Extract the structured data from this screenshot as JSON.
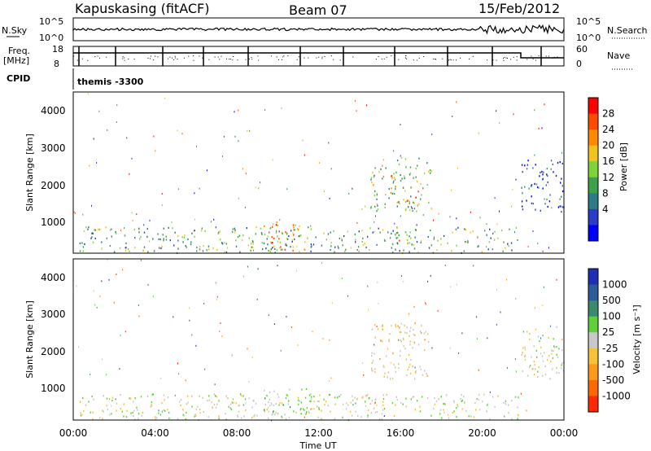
{
  "header": {
    "station": "Kapuskasing (fitACF)",
    "beam": "Beam 07",
    "date": "15/Feb/2012"
  },
  "strips": {
    "nsky_label": "N.Sky",
    "nsky_ticks": [
      "10^5",
      "10^0"
    ],
    "nsearch_label": "N.Search",
    "nsearch_ticks": [
      "10^5",
      "10^0"
    ],
    "freq_label": "Freq.",
    "freq_unit": "[MHz]",
    "freq_ticks": [
      "18",
      "8"
    ],
    "nave_label": "Nave",
    "nave_ticks": [
      "60",
      "0"
    ],
    "cpid_label": "CPID",
    "cpid_value": "themis -3300"
  },
  "power_panel": {
    "ylabel": "Slant Range [km]",
    "yticks": [
      "4000",
      "3000",
      "2000",
      "1000"
    ],
    "colorbar_label": "Power [dB]",
    "colorbar_ticks": [
      "28",
      "24",
      "20",
      "16",
      "12",
      "8",
      "4"
    ],
    "colors": [
      "#0000ff",
      "#2a3cc8",
      "#2e7a86",
      "#3fa04a",
      "#7fd23a",
      "#f0c31e",
      "#ff8a00",
      "#ff4a00",
      "#ff0000"
    ]
  },
  "velocity_panel": {
    "ylabel": "Slant Range [km]",
    "yticks": [
      "4000",
      "3000",
      "2000",
      "1000"
    ],
    "colorbar_label": "Velocity [m s⁻¹]",
    "colorbar_ticks": [
      "1000",
      "500",
      "100",
      "25",
      "-25",
      "-100",
      "-500",
      "-1000"
    ],
    "colors": [
      "#1e2fb4",
      "#2e5a9a",
      "#3a8a70",
      "#5fcf3a",
      "#c8c8c8",
      "#f6c23a",
      "#ff9a1a",
      "#ff6a00",
      "#ff2a00"
    ]
  },
  "xaxis": {
    "label": "Time UT",
    "ticks": [
      "00:00",
      "04:00",
      "08:00",
      "12:00",
      "16:00",
      "20:00",
      "00:00"
    ]
  },
  "chart_data": [
    {
      "type": "heatmap",
      "title": "Power",
      "xlabel": "Time UT",
      "ylabel": "Slant Range [km]",
      "xlim_hours": [
        0,
        24
      ],
      "ylim_km": [
        180,
        4500
      ],
      "colorbar_label": "Power [dB]",
      "colorbar_range": [
        0,
        30
      ],
      "regions": [
        {
          "t0": 0.3,
          "t1": 21.8,
          "r0": 200,
          "r1": 900,
          "value": 12
        },
        {
          "t0": 9.3,
          "t1": 11.4,
          "r0": 250,
          "r1": 1100,
          "value": 20
        },
        {
          "t0": 14.5,
          "t1": 17.5,
          "r0": 1300,
          "r1": 2800,
          "value": 14
        },
        {
          "t0": 16.3,
          "t1": 17.0,
          "r0": 1500,
          "r1": 2000,
          "value": 22
        },
        {
          "t0": 21.9,
          "t1": 24.0,
          "r0": 1300,
          "r1": 2700,
          "value": 6
        }
      ]
    },
    {
      "type": "heatmap",
      "title": "Velocity",
      "xlabel": "Time UT",
      "ylabel": "Slant Range [km]",
      "xlim_hours": [
        0,
        24
      ],
      "ylim_km": [
        180,
        4500
      ],
      "colorbar_label": "Velocity [m s⁻¹]",
      "colorbar_range": [
        -1000,
        1000
      ],
      "regions": [
        {
          "t0": 0.3,
          "t1": 21.8,
          "r0": 200,
          "r1": 900,
          "value": 0
        },
        {
          "t0": 9.3,
          "t1": 11.4,
          "r0": 250,
          "r1": 1100,
          "value": 150
        },
        {
          "t0": 14.5,
          "t1": 17.5,
          "r0": 1300,
          "r1": 2800,
          "value": -150
        },
        {
          "t0": 21.9,
          "t1": 24.0,
          "r0": 1300,
          "r1": 2700,
          "value": 0
        }
      ]
    }
  ]
}
